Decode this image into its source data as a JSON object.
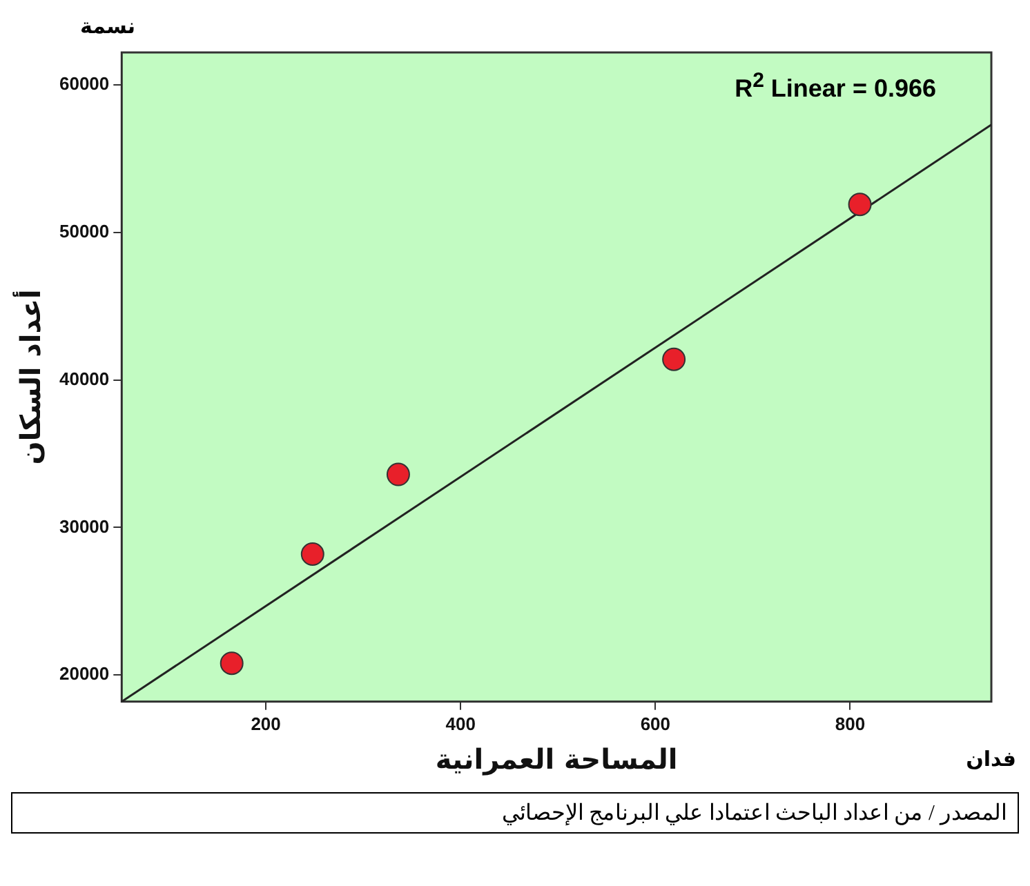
{
  "chart_data": {
    "type": "scatter",
    "xlabel": "المساحة العمرانية",
    "ylabel": "أعداد السكان",
    "annotations": [
      "R$^{2}$ Linear = 0.966",
      "نسمة",
      "فدان",
      "المصدر / من اعداد الباحث اعتمادا علي البرنامج الإحصائي"
    ],
    "xlim": [
      52,
      945
    ],
    "ylim": [
      18200,
      62200
    ],
    "xticks": [
      200,
      400,
      600,
      800
    ],
    "yticks": [
      20000,
      30000,
      40000,
      50000,
      60000
    ],
    "grid": false,
    "legend": false,
    "series": [
      {
        "type": "scatter",
        "color": "#e8202a",
        "marker": "circle",
        "x": [
          165,
          248,
          336,
          619,
          810
        ],
        "values": [
          20800,
          28200,
          33600,
          41400,
          51900
        ]
      },
      {
        "type": "line",
        "color": "#222222",
        "line_style": "solid",
        "x": [
          52,
          945
        ],
        "values": [
          18200,
          57300
        ]
      }
    ]
  }
}
